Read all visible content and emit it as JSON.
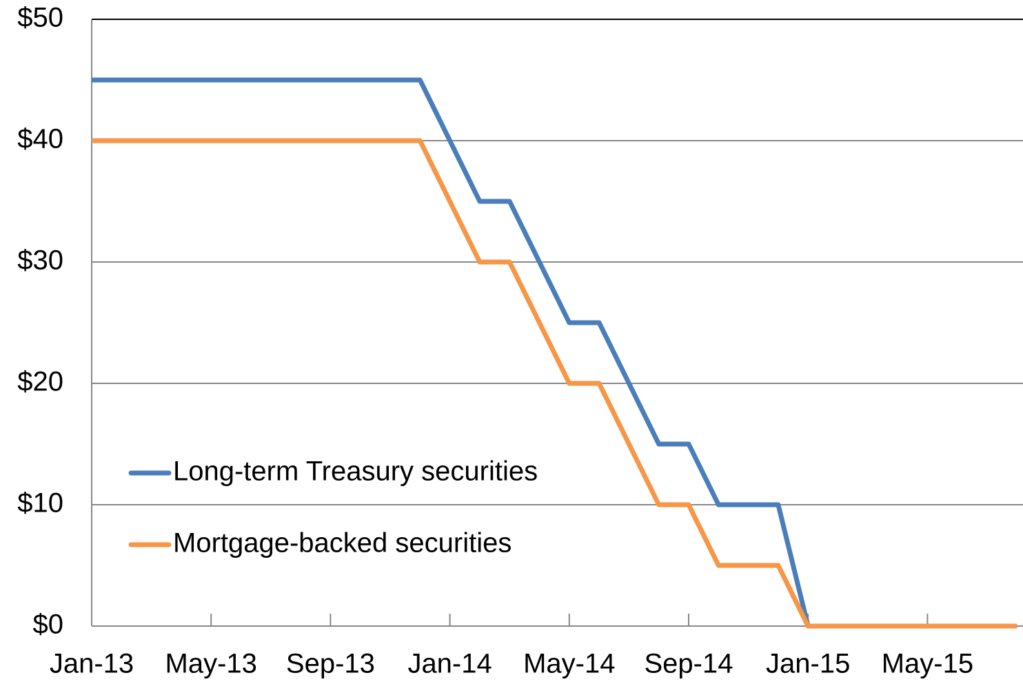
{
  "chart_data": {
    "type": "line",
    "categories": [
      "Jan-13",
      null,
      null,
      null,
      "May-13",
      null,
      null,
      null,
      "Sep-13",
      null,
      null,
      null,
      "Jan-14",
      null,
      null,
      null,
      "May-14",
      null,
      null,
      null,
      "Sep-14",
      null,
      null,
      null,
      "Jan-15",
      null,
      null,
      null,
      "May-15",
      null,
      null,
      null
    ],
    "series": [
      {
        "name": "Long-term Treasury securities",
        "color": "#4a7ebb",
        "values": [
          45,
          45,
          45,
          45,
          45,
          45,
          45,
          45,
          45,
          45,
          45,
          45,
          40,
          35,
          35,
          30,
          25,
          25,
          20,
          15,
          15,
          10,
          10,
          10,
          0,
          0,
          0,
          0,
          0,
          0,
          0,
          0
        ]
      },
      {
        "name": "Mortgage-backed securities",
        "color": "#f79646",
        "values": [
          40,
          40,
          40,
          40,
          40,
          40,
          40,
          40,
          40,
          40,
          40,
          40,
          35,
          30,
          30,
          25,
          20,
          20,
          15,
          10,
          10,
          5,
          5,
          5,
          0,
          0,
          0,
          0,
          0,
          0,
          0,
          0
        ]
      }
    ],
    "ylim": [
      0,
      50
    ],
    "yticks": [
      {
        "value": 0,
        "label": "$0"
      },
      {
        "value": 10,
        "label": "$10"
      },
      {
        "value": 20,
        "label": "$20"
      },
      {
        "value": 30,
        "label": "$30"
      },
      {
        "value": 40,
        "label": "$40"
      },
      {
        "value": 50,
        "label": "$50"
      }
    ],
    "grid": true
  }
}
